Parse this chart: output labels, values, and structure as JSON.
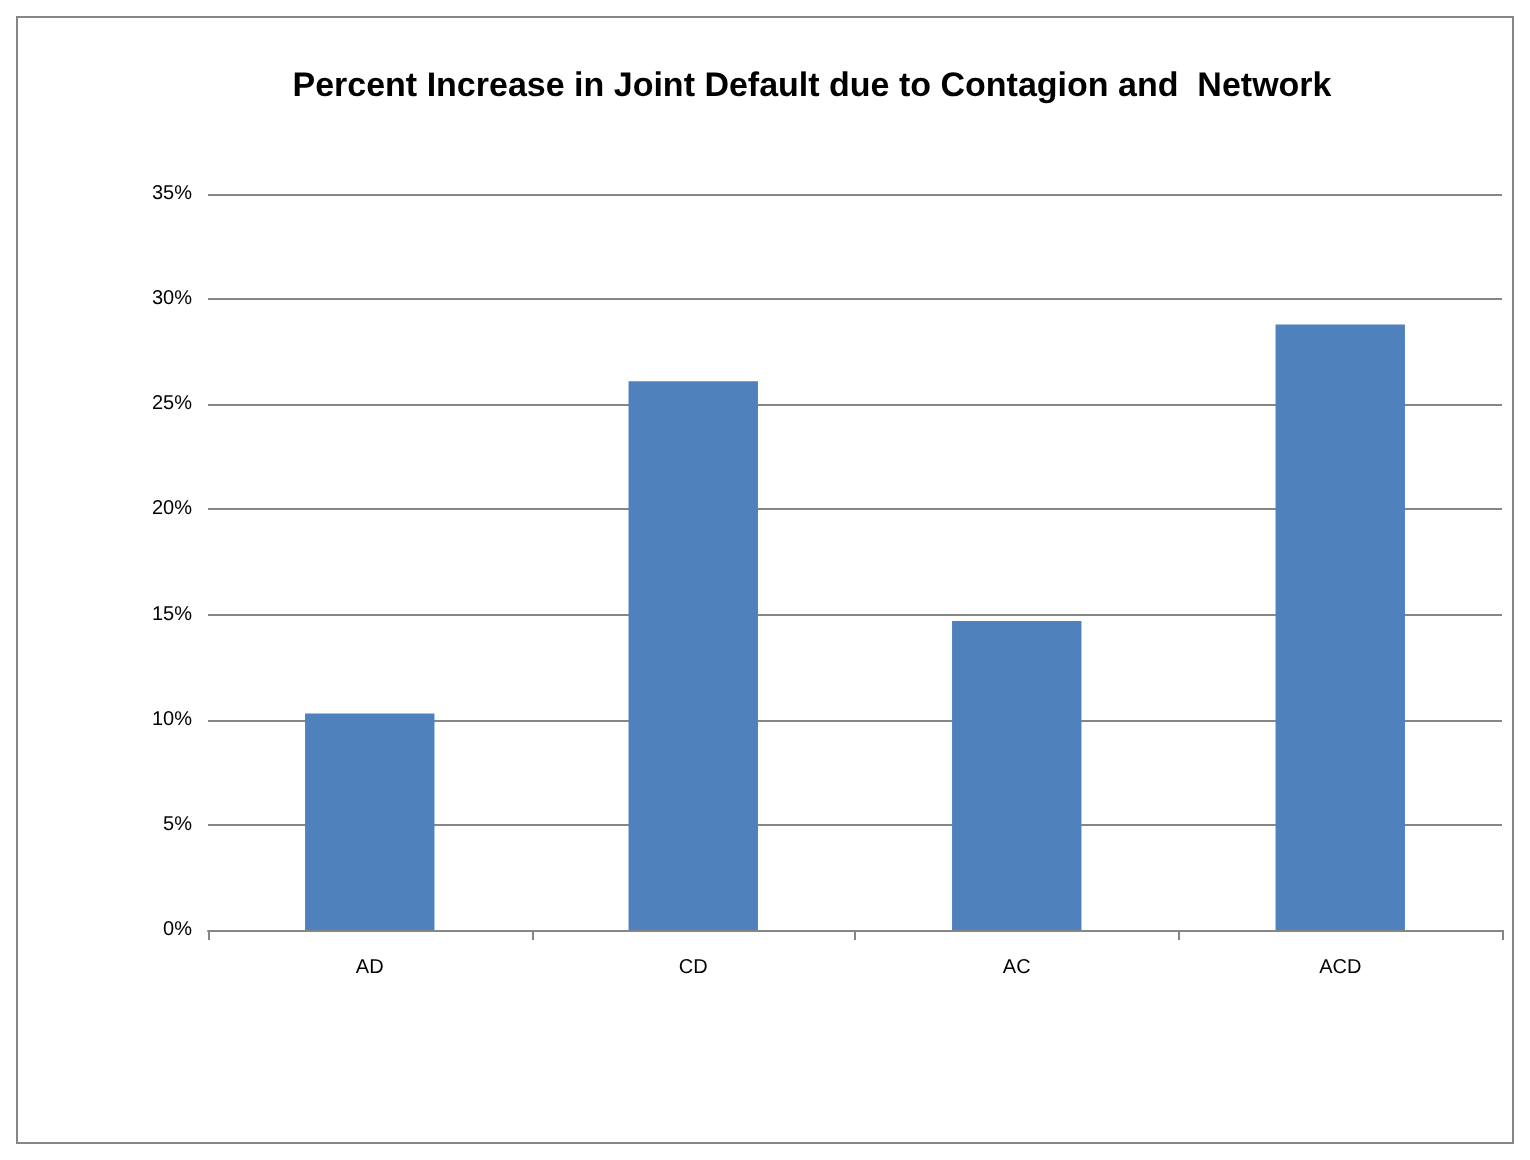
{
  "chart_data": {
    "type": "bar",
    "title": "Percent Increase in Joint Default due to Contagion and  Network",
    "categories": [
      "AD",
      "CD",
      "AC",
      "ACD"
    ],
    "values": [
      10.3,
      26.1,
      14.7,
      28.8
    ],
    "color": "#4f81bd",
    "ylim": [
      0,
      35
    ],
    "yticks": [
      {
        "value": 0,
        "label": "0%"
      },
      {
        "value": 5,
        "label": "5%"
      },
      {
        "value": 10,
        "label": "10%"
      },
      {
        "value": 15,
        "label": "15%"
      },
      {
        "value": 20,
        "label": "20%"
      },
      {
        "value": 25,
        "label": "25%"
      },
      {
        "value": 30,
        "label": "30%"
      },
      {
        "value": 35,
        "label": "35%"
      }
    ],
    "grid": "y"
  }
}
